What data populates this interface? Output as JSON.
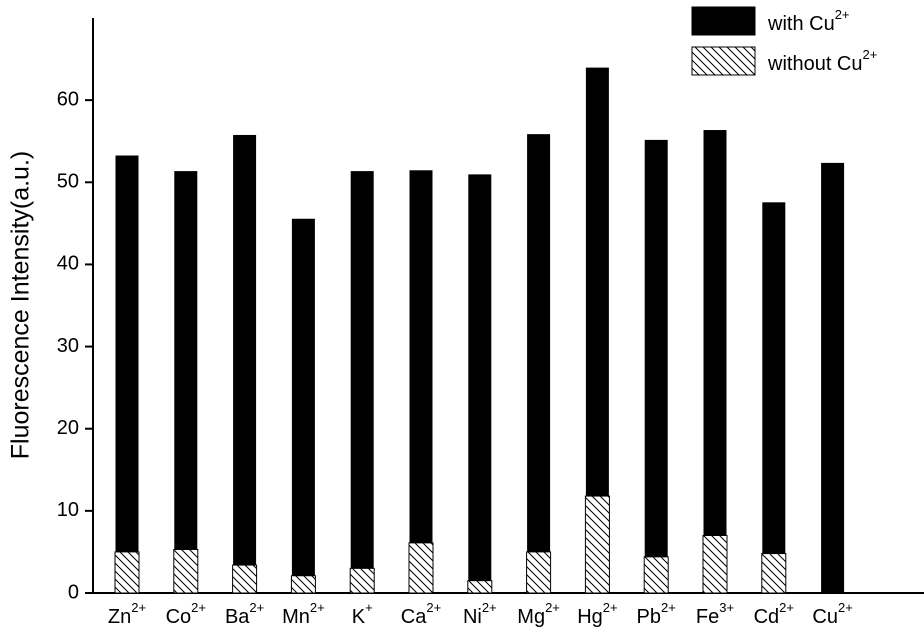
{
  "chart_data": {
    "type": "bar",
    "y_label": "Fluorescence Intensity(a.u.)",
    "categories": [
      "Zn2+",
      "Co2+",
      "Ba2+",
      "Mn2+",
      "K+",
      "Ca2+",
      "Ni2+",
      "Mg2+",
      "Hg2+",
      "Pb2+",
      "Fe3+",
      "Cd2+",
      "Cu2+"
    ],
    "series": [
      {
        "name": "with Cu2+",
        "color": "#000000",
        "pattern": "solid",
        "values": [
          53.2,
          51.3,
          55.7,
          45.5,
          51.3,
          51.4,
          50.9,
          55.8,
          63.9,
          55.1,
          56.3,
          47.5,
          52.3
        ]
      },
      {
        "name": "without Cu2+",
        "color": "#000000",
        "pattern": "hatch",
        "values": [
          5.0,
          5.3,
          3.4,
          2.1,
          3.0,
          6.1,
          1.5,
          5.0,
          11.8,
          4.4,
          7.0,
          4.8,
          0
        ]
      }
    ],
    "ylim": [
      0,
      70
    ],
    "yticks": [
      0,
      10,
      20,
      30,
      40,
      50,
      60
    ],
    "legend": "upper right"
  }
}
